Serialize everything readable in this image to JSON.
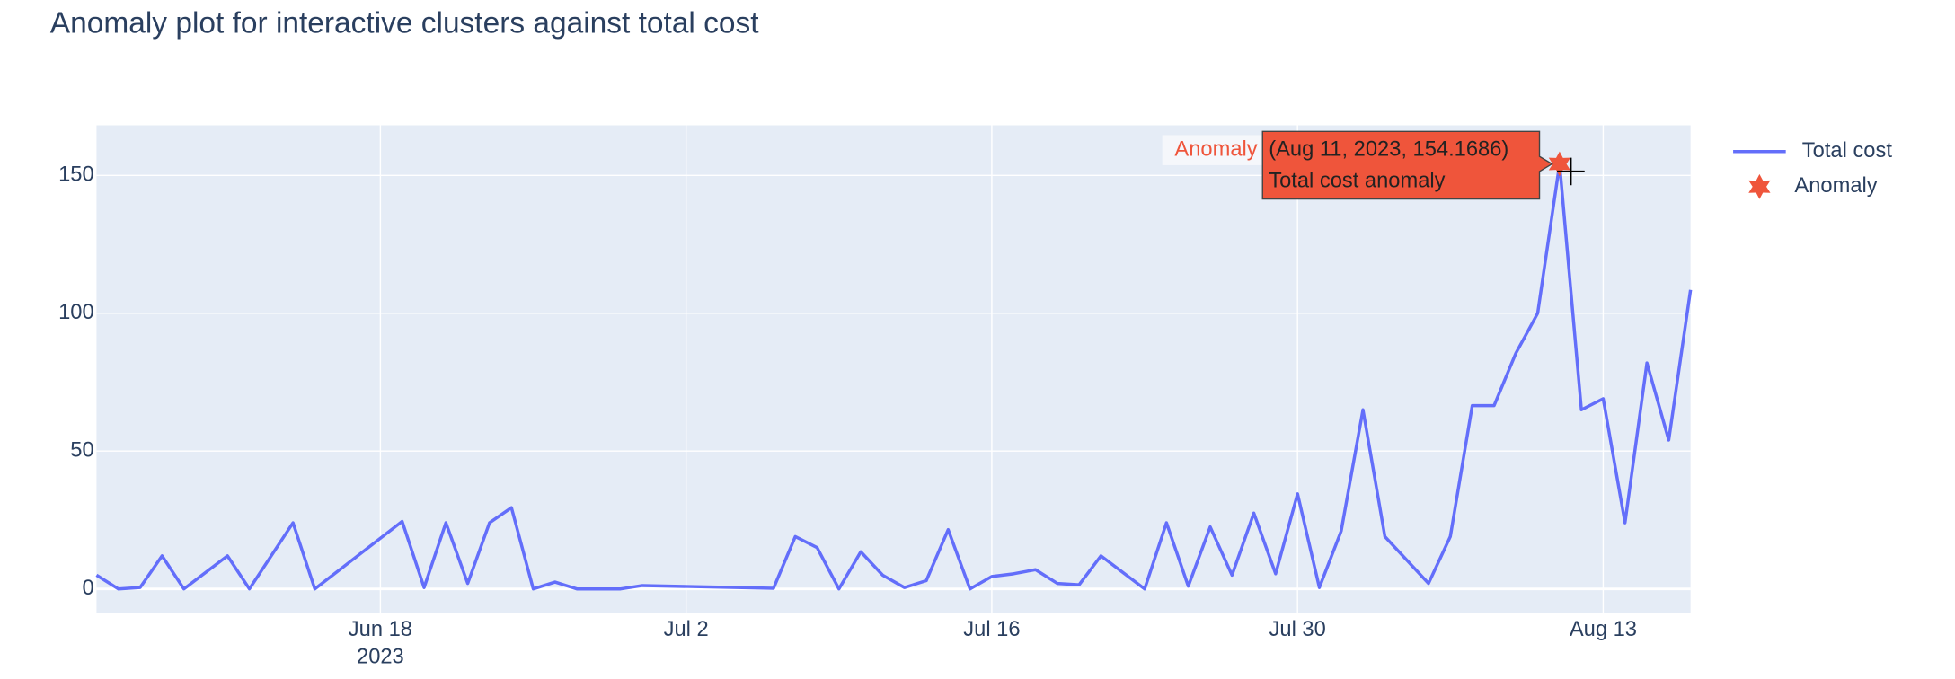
{
  "chart_data": {
    "type": "line",
    "title": "Anomaly plot for interactive clusters against total cost",
    "xlim": [
      "2023-06-05",
      "2023-08-17"
    ],
    "xticks": [
      {
        "value": "2023-06-18",
        "label": "Jun 18"
      },
      {
        "value": "2023-07-02",
        "label": "Jul 2"
      },
      {
        "value": "2023-07-16",
        "label": "Jul 16"
      },
      {
        "value": "2023-07-30",
        "label": "Jul 30"
      },
      {
        "value": "2023-08-13",
        "label": "Aug 13"
      }
    ],
    "x_year_label": "2023",
    "ylim": [
      -8.6,
      168.2
    ],
    "yticks": [
      0,
      50,
      100,
      150
    ],
    "grid": true,
    "legend": "right",
    "series": [
      {
        "name": "Total cost",
        "color": "#636efa",
        "x": [
          "2023-06-05",
          "2023-06-06",
          "2023-06-07",
          "2023-06-08",
          "2023-06-09",
          "2023-06-11",
          "2023-06-12",
          "2023-06-14",
          "2023-06-15",
          "2023-06-19",
          "2023-06-20",
          "2023-06-21",
          "2023-06-22",
          "2023-06-23",
          "2023-06-24",
          "2023-06-25",
          "2023-06-26",
          "2023-06-27",
          "2023-06-29",
          "2023-06-30",
          "2023-07-06",
          "2023-07-07",
          "2023-07-08",
          "2023-07-09",
          "2023-07-10",
          "2023-07-11",
          "2023-07-12",
          "2023-07-13",
          "2023-07-14",
          "2023-07-15",
          "2023-07-16",
          "2023-07-17",
          "2023-07-18",
          "2023-07-19",
          "2023-07-20",
          "2023-07-21",
          "2023-07-23",
          "2023-07-24",
          "2023-07-25",
          "2023-07-26",
          "2023-07-27",
          "2023-07-28",
          "2023-07-29",
          "2023-07-30",
          "2023-07-31",
          "2023-08-01",
          "2023-08-02",
          "2023-08-03",
          "2023-08-05",
          "2023-08-06",
          "2023-08-07",
          "2023-08-08",
          "2023-08-09",
          "2023-08-10",
          "2023-08-11",
          "2023-08-12",
          "2023-08-13",
          "2023-08-14",
          "2023-08-15",
          "2023-08-16",
          "2023-08-17"
        ],
        "values": [
          5,
          0,
          0.5,
          12,
          0,
          12,
          0,
          24,
          0,
          24.5,
          0.5,
          24,
          2,
          24,
          29.5,
          0,
          2.5,
          0,
          0,
          1.2,
          0.2,
          19,
          15,
          0,
          13.5,
          5,
          0.5,
          3,
          21.5,
          0,
          4.5,
          5.5,
          7,
          2,
          1.5,
          12,
          0,
          24,
          1,
          22.5,
          5,
          27.5,
          5.5,
          34.5,
          0.5,
          21,
          65,
          19,
          2,
          19,
          66.5,
          66.5,
          85.5,
          100,
          154.1686,
          65,
          69,
          24,
          82,
          54,
          108.5
        ]
      },
      {
        "name": "Anomaly",
        "color": "#EF553B",
        "marker": "star",
        "x": [
          "2023-08-11"
        ],
        "values": [
          154.1686
        ]
      }
    ],
    "annotation": "Anomaly",
    "hover": {
      "line1": "(Aug 11, 2023, 154.1686)",
      "line2": "Total cost anomaly"
    }
  }
}
